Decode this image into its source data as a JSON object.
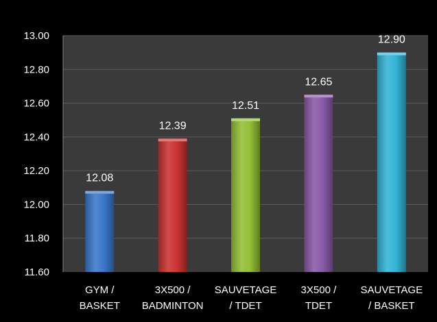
{
  "chart_data": {
    "type": "bar",
    "categories": [
      [
        "GYM /",
        "BASKET"
      ],
      [
        "3X500 /",
        "BADMINTON"
      ],
      [
        "SAUVETAGE",
        "/ TDET"
      ],
      [
        "3X500 /",
        "TDET"
      ],
      [
        "SAUVETAGE",
        "/ BASKET"
      ]
    ],
    "values": [
      12.08,
      12.39,
      12.51,
      12.65,
      12.9
    ],
    "value_labels": [
      "12.08",
      "12.39",
      "12.51",
      "12.65",
      "12.90"
    ],
    "ylim": [
      11.6,
      13.0
    ],
    "yticks": [
      11.6,
      11.8,
      12.0,
      12.2,
      12.4,
      12.6,
      12.8,
      13.0
    ],
    "ytick_labels": [
      "11.60",
      "11.80",
      "12.00",
      "12.20",
      "12.40",
      "12.60",
      "12.80",
      "13.00"
    ],
    "grid": true,
    "legend": "none",
    "title": "",
    "xlabel": "",
    "ylabel": "",
    "colors": {
      "background": "#000000",
      "plot_area": "#3a3a3a",
      "gridline": "#5c5c5c",
      "axis": "#8a8a8a",
      "bars": [
        "#3a78c9",
        "#cc3333",
        "#93bf35",
        "#8a5aa8",
        "#33b5d6"
      ]
    }
  }
}
